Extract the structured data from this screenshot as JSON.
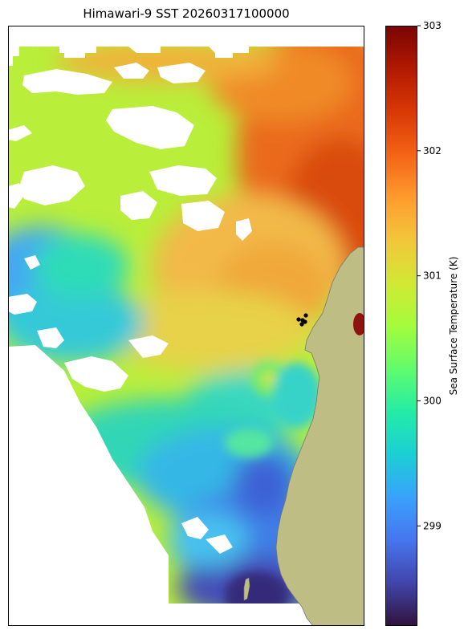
{
  "title": "Himawari-9 SST 20260317100000",
  "colorbar": {
    "label": "Sea Surface Temperature (K)",
    "min": 298.2,
    "max": 303,
    "ticks": [
      "299",
      "300",
      "301",
      "302",
      "303"
    ]
  },
  "colors": {
    "land": "#bebe84",
    "missing": "#ffffff",
    "colormap": [
      "#30123b",
      "#4145ab",
      "#4675ed",
      "#39a2fc",
      "#1bcfd4",
      "#24eca6",
      "#61fc6c",
      "#a4fc3b",
      "#d1e834",
      "#f3c63a",
      "#fe9b2d",
      "#f36315",
      "#d93806",
      "#b11901",
      "#7a0403"
    ]
  },
  "markers": {
    "count": 5,
    "color": "#000000"
  }
}
